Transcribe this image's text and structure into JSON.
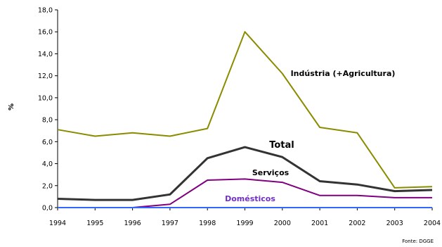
{
  "chart_data": {
    "type": "line",
    "x": [
      "1994",
      "1995",
      "1996",
      "1997",
      "1998",
      "1999",
      "2000",
      "2001",
      "2002",
      "2003",
      "2004"
    ],
    "ylabel": "%",
    "ylim": [
      0,
      18
    ],
    "yticks": [
      "0,0",
      "2,0",
      "4,0",
      "6,0",
      "8,0",
      "10,0",
      "12,0",
      "14,0",
      "16,0",
      "18,0"
    ],
    "grid": false,
    "source_note": "Fonte: DGGE",
    "series": [
      {
        "name": "Indústria (+Agricultura)",
        "color": "#8B8B00",
        "label_weight": "bold",
        "label_size": 11,
        "values": [
          7.1,
          6.5,
          6.8,
          6.5,
          7.2,
          16.0,
          12.2,
          7.3,
          6.8,
          1.8,
          1.9
        ]
      },
      {
        "name": "Total",
        "color": "#333333",
        "label_weight": "bold",
        "label_size": 13,
        "values": [
          0.8,
          0.7,
          0.7,
          1.2,
          4.5,
          5.5,
          4.6,
          2.4,
          2.1,
          1.5,
          1.6
        ]
      },
      {
        "name": "Serviços",
        "color": "#800080",
        "label_weight": "bold",
        "label_size": 11,
        "values": [
          0.0,
          0.0,
          0.0,
          0.3,
          2.5,
          2.6,
          2.3,
          1.1,
          1.1,
          0.9,
          0.9
        ]
      },
      {
        "name": "Domésticos",
        "color": "#3366FF",
        "label_color": "#7030C0",
        "label_weight": "bold",
        "label_size": 11,
        "values": [
          0.0,
          0.0,
          0.0,
          0.0,
          0.0,
          0.0,
          0.0,
          0.0,
          0.0,
          0.0,
          0.0
        ]
      }
    ]
  }
}
